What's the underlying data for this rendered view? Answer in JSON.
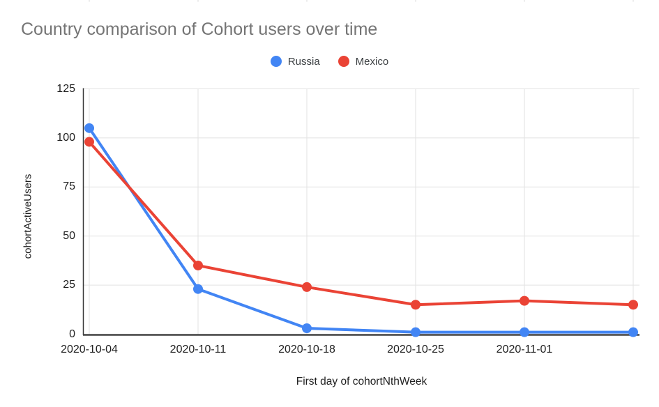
{
  "chart_data": {
    "type": "line",
    "title": "Country comparison of Cohort users over time",
    "xlabel": "First day of cohortNthWeek",
    "ylabel": "cohortActiveUsers",
    "categories": [
      "2020-10-04",
      "2020-10-11",
      "2020-10-18",
      "2020-10-25",
      "2020-11-01",
      ""
    ],
    "series": [
      {
        "name": "Russia",
        "color": "#4285f4",
        "values": [
          105,
          23,
          3,
          1,
          1,
          1
        ]
      },
      {
        "name": "Mexico",
        "color": "#ea4335",
        "values": [
          98,
          35,
          24,
          15,
          17,
          15
        ]
      }
    ],
    "y_ticks": [
      0,
      25,
      50,
      75,
      100,
      125
    ],
    "ylim": [
      0,
      125
    ],
    "grid": true,
    "legend_position": "top-center",
    "marker": "circle"
  },
  "colors": {
    "grid": "#e2e2e2",
    "axis": "#424242",
    "tick_label": "#1f1f1f",
    "title_gray": "#757575",
    "legend_text": "#3c4043",
    "crop_mark": "#d8d8d8"
  }
}
